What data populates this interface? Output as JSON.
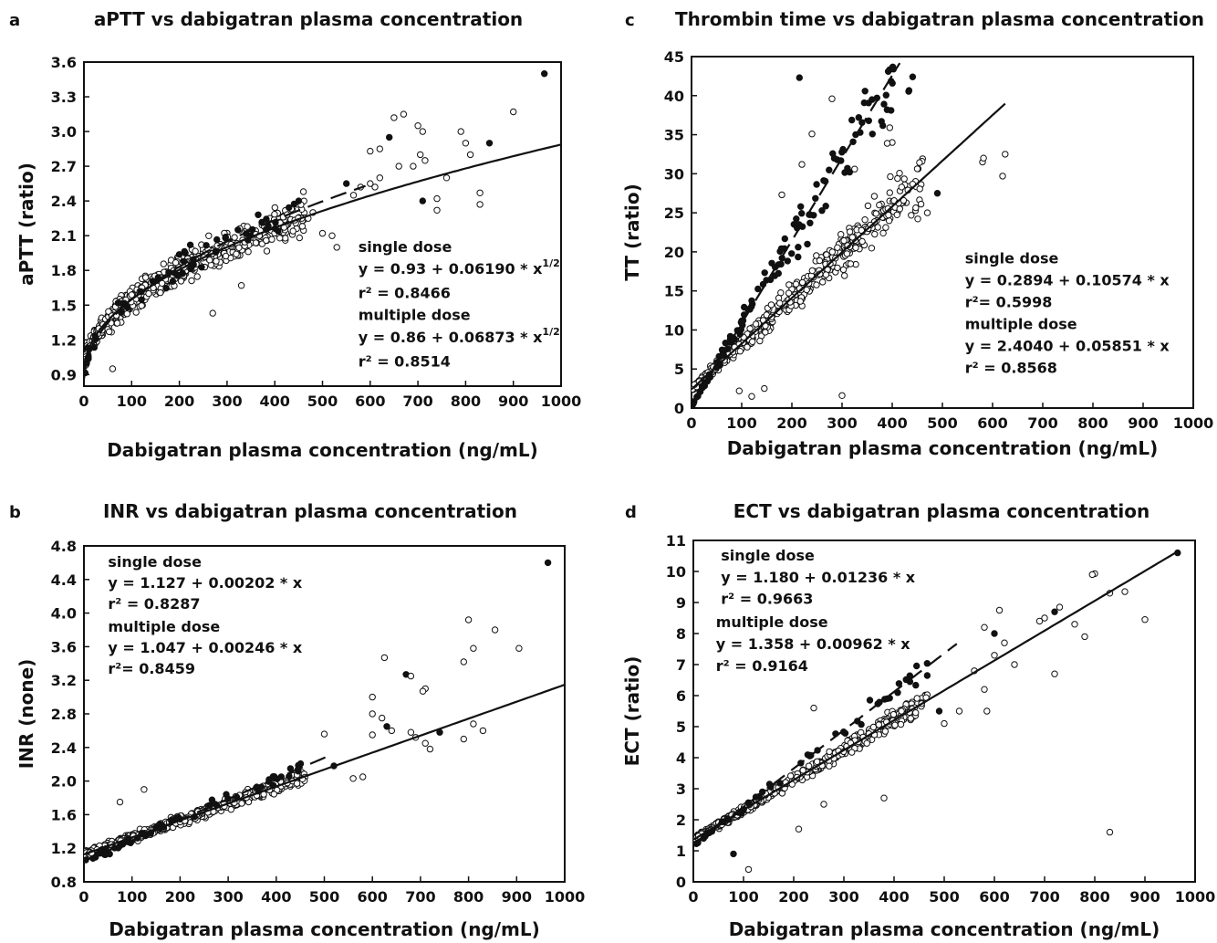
{
  "chart_data": [
    {
      "id": "a",
      "type": "scatter",
      "letter": "a",
      "title": "aPTT vs dabigatran plasma concentration",
      "xlabel": "Dabigatran plasma concentration (ng/mL)",
      "ylabel": "aPTT (ratio)",
      "xlim": [
        0,
        1000
      ],
      "ylim": [
        0.8,
        3.6
      ],
      "xticks": [
        "0",
        "100",
        "200",
        "300",
        "400",
        "500",
        "600",
        "700",
        "800",
        "900",
        "1000"
      ],
      "yticks": [
        "0.9",
        "1.2",
        "1.5",
        "1.8",
        "2.1",
        "2.4",
        "2.7",
        "3.0",
        "3.3",
        "3.6"
      ],
      "annotations": [
        {
          "text": "single dose",
          "x": 575,
          "y": 1.96
        },
        {
          "text": "y = 0.93 + 0.06190 * x",
          "sup": "1/2",
          "x": 575,
          "y": 1.77
        },
        {
          "text": "r² = 0.8466",
          "x": 575,
          "y": 1.56
        },
        {
          "text": "multiple dose",
          "x": 575,
          "y": 1.37
        },
        {
          "text": "y = 0.86 + 0.06873 * x",
          "sup": "1/2",
          "x": 575,
          "y": 1.18
        },
        {
          "text": "r² = 0.8514",
          "x": 575,
          "y": 0.97
        }
      ],
      "series": [
        {
          "model": "sqrt",
          "a": 0.93,
          "b": 0.0619,
          "xmax": 1000,
          "dashed": false
        },
        {
          "model": "sqrt",
          "a": 0.86,
          "b": 0.06873,
          "xmax": 590,
          "dashed": true
        }
      ],
      "outliers": [
        [
          965,
          3.5
        ],
        [
          900,
          3.17
        ],
        [
          670,
          3.15
        ],
        [
          650,
          3.12
        ],
        [
          700,
          3.05
        ],
        [
          710,
          3.0
        ],
        [
          790,
          3.0
        ],
        [
          640,
          2.95
        ],
        [
          600,
          2.83
        ],
        [
          620,
          2.85
        ],
        [
          705,
          2.8
        ],
        [
          715,
          2.75
        ],
        [
          800,
          2.9
        ],
        [
          810,
          2.8
        ],
        [
          850,
          2.9
        ],
        [
          660,
          2.7
        ],
        [
          690,
          2.7
        ],
        [
          620,
          2.6
        ],
        [
          600,
          2.55
        ],
        [
          580,
          2.52
        ],
        [
          565,
          2.45
        ],
        [
          710,
          2.4
        ],
        [
          740,
          2.42
        ],
        [
          740,
          2.32
        ],
        [
          760,
          2.6
        ],
        [
          830,
          2.47
        ],
        [
          830,
          2.37
        ],
        [
          610,
          2.52
        ],
        [
          550,
          2.55
        ],
        [
          500,
          2.12
        ],
        [
          520,
          2.1
        ],
        [
          530,
          2.0
        ],
        [
          480,
          2.3
        ],
        [
          470,
          2.25
        ],
        [
          460,
          2.48
        ],
        [
          450,
          2.4
        ],
        [
          60,
          0.95
        ],
        [
          270,
          1.43
        ],
        [
          330,
          1.67
        ]
      ],
      "filled_count": 55,
      "open_count": 520,
      "cloud_xmax": 460,
      "cloud_noise": 0.13
    },
    {
      "id": "c",
      "type": "scatter",
      "letter": "c",
      "title": "Thrombin time vs dabigatran plasma concentration",
      "xlabel": "Dabigatran plasma concentration (ng/mL)",
      "ylabel": "TT (ratio)",
      "xlim": [
        0,
        1000
      ],
      "ylim": [
        0,
        45
      ],
      "xticks": [
        "0",
        "100",
        "200",
        "300",
        "400",
        "500",
        "600",
        "700",
        "800",
        "900",
        "1000"
      ],
      "yticks": [
        "0",
        "5",
        "10",
        "15",
        "20",
        "25",
        "30",
        "35",
        "40",
        "45"
      ],
      "annotations": [
        {
          "text": "single dose",
          "x": 545,
          "y": 18.5
        },
        {
          "text": "y = 0.2894 + 0.10574 * x",
          "x": 545,
          "y": 15.7
        },
        {
          "text": "r²= 0.5998",
          "x": 545,
          "y": 12.9
        },
        {
          "text": "multiple dose",
          "x": 545,
          "y": 10.1
        },
        {
          "text": "y = 2.4040 + 0.05851 * x",
          "x": 545,
          "y": 7.3
        },
        {
          "text": "r² = 0.8568",
          "x": 545,
          "y": 4.5
        }
      ],
      "series": [
        {
          "model": "linear",
          "a": 0.2894,
          "b": 0.10574,
          "xmax": 415,
          "dashed": true
        },
        {
          "model": "linear",
          "a": 2.404,
          "b": 0.05851,
          "xmax": 625,
          "dashed": false
        }
      ],
      "outliers": [
        [
          215,
          42.3
        ],
        [
          280,
          39.6
        ],
        [
          395,
          35.9
        ],
        [
          240,
          35.1
        ],
        [
          400,
          34.0
        ],
        [
          390,
          33.9
        ],
        [
          325,
          30.6
        ],
        [
          315,
          30.2
        ],
        [
          220,
          31.2
        ],
        [
          180,
          27.3
        ],
        [
          580,
          31.5
        ],
        [
          582,
          32.0
        ],
        [
          625,
          32.5
        ],
        [
          620,
          29.7
        ],
        [
          490,
          27.5
        ],
        [
          470,
          25.0
        ],
        [
          300,
          1.6
        ],
        [
          145,
          2.5
        ],
        [
          120,
          1.5
        ],
        [
          95,
          2.2
        ]
      ],
      "filled_count": 140,
      "open_count": 420,
      "cloud_xmax": 460,
      "cloud_noise": 0.22
    },
    {
      "id": "b",
      "type": "scatter",
      "letter": "b",
      "title": "INR vs dabigatran plasma concentration",
      "xlabel": "Dabigatran plasma concentration (ng/mL)",
      "ylabel": "INR (none)",
      "xlim": [
        0,
        1000
      ],
      "ylim": [
        0.8,
        4.8
      ],
      "xticks": [
        "0",
        "100",
        "200",
        "300",
        "400",
        "500",
        "600",
        "700",
        "800",
        "900",
        "1000"
      ],
      "yticks": [
        "0.8",
        "1.2",
        "1.6",
        "2.0",
        "2.4",
        "2.8",
        "3.2",
        "3.6",
        "4.0",
        "4.4",
        "4.8"
      ],
      "annotations": [
        {
          "text": "single dose",
          "x": 50,
          "y": 4.55
        },
        {
          "text": "y = 1.127 + 0.00202 * x",
          "x": 50,
          "y": 4.3
        },
        {
          "text": "r² = 0.8287",
          "x": 50,
          "y": 4.05
        },
        {
          "text": "multiple dose",
          "x": 50,
          "y": 3.78
        },
        {
          "text": "y = 1.047 + 0.00246 * x",
          "x": 50,
          "y": 3.53
        },
        {
          "text": "r²= 0.8459",
          "x": 50,
          "y": 3.28
        }
      ],
      "series": [
        {
          "model": "linear",
          "a": 1.127,
          "b": 0.00202,
          "xmax": 1000,
          "dashed": false
        },
        {
          "model": "linear",
          "a": 1.047,
          "b": 0.00246,
          "xmax": 510,
          "dashed": true
        }
      ],
      "outliers": [
        [
          965,
          4.6
        ],
        [
          800,
          3.92
        ],
        [
          855,
          3.8
        ],
        [
          810,
          3.58
        ],
        [
          905,
          3.58
        ],
        [
          790,
          3.42
        ],
        [
          625,
          3.47
        ],
        [
          670,
          3.27
        ],
        [
          680,
          3.25
        ],
        [
          710,
          3.1
        ],
        [
          705,
          3.07
        ],
        [
          600,
          3.0
        ],
        [
          620,
          2.75
        ],
        [
          600,
          2.8
        ],
        [
          630,
          2.65
        ],
        [
          640,
          2.6
        ],
        [
          600,
          2.55
        ],
        [
          680,
          2.58
        ],
        [
          690,
          2.52
        ],
        [
          710,
          2.45
        ],
        [
          720,
          2.38
        ],
        [
          740,
          2.58
        ],
        [
          790,
          2.5
        ],
        [
          810,
          2.68
        ],
        [
          830,
          2.6
        ],
        [
          500,
          2.56
        ],
        [
          580,
          2.05
        ],
        [
          560,
          2.03
        ],
        [
          520,
          2.18
        ],
        [
          75,
          1.75
        ],
        [
          125,
          1.9
        ]
      ],
      "filled_count": 60,
      "open_count": 560,
      "cloud_xmax": 460,
      "cloud_noise": 0.07
    },
    {
      "id": "d",
      "type": "scatter",
      "letter": "d",
      "title": "ECT vs dabigatran plasma concentration",
      "xlabel": "Dabigatran plasma concentration (ng/mL)",
      "ylabel": "ECT (ratio)",
      "xlim": [
        0,
        1000
      ],
      "ylim": [
        0,
        11
      ],
      "xticks": [
        "0",
        "100",
        "200",
        "300",
        "400",
        "500",
        "600",
        "700",
        "800",
        "900",
        "1000"
      ],
      "yticks": [
        "0",
        "1",
        "2",
        "3",
        "4",
        "5",
        "6",
        "7",
        "8",
        "9",
        "10",
        "11"
      ],
      "annotations": [
        {
          "text": "single dose",
          "x": 55,
          "y": 10.35
        },
        {
          "text": "y = 1.180 + 0.01236 * x",
          "x": 55,
          "y": 9.65
        },
        {
          "text": "r² = 0.9663",
          "x": 55,
          "y": 8.95
        },
        {
          "text": "multiple dose",
          "x": 45,
          "y": 8.2
        },
        {
          "text": "y = 1.358 + 0.00962 * x",
          "x": 45,
          "y": 7.5
        },
        {
          "text": "r² = 0.9164",
          "x": 45,
          "y": 6.8
        }
      ],
      "series": [
        {
          "model": "linear",
          "a": 1.18,
          "b": 0.01236,
          "xmax": 525,
          "dashed": true
        },
        {
          "model": "linear",
          "a": 1.358,
          "b": 0.00962,
          "xmax": 965,
          "dashed": false
        }
      ],
      "outliers": [
        [
          965,
          10.6
        ],
        [
          800,
          9.93
        ],
        [
          795,
          9.9
        ],
        [
          860,
          9.35
        ],
        [
          900,
          8.45
        ],
        [
          830,
          9.3
        ],
        [
          730,
          8.85
        ],
        [
          720,
          8.7
        ],
        [
          700,
          8.5
        ],
        [
          690,
          8.4
        ],
        [
          760,
          8.3
        ],
        [
          780,
          7.9
        ],
        [
          610,
          8.75
        ],
        [
          580,
          8.2
        ],
        [
          600,
          8.0
        ],
        [
          620,
          7.7
        ],
        [
          600,
          7.3
        ],
        [
          640,
          7.0
        ],
        [
          560,
          6.8
        ],
        [
          580,
          6.2
        ],
        [
          530,
          5.5
        ],
        [
          490,
          5.5
        ],
        [
          500,
          5.1
        ],
        [
          585,
          5.5
        ],
        [
          830,
          1.6
        ],
        [
          380,
          2.7
        ],
        [
          210,
          1.7
        ],
        [
          110,
          0.4
        ],
        [
          80,
          0.9
        ],
        [
          240,
          5.6
        ],
        [
          260,
          2.5
        ],
        [
          720,
          6.7
        ]
      ],
      "filled_count": 45,
      "open_count": 520,
      "cloud_xmax": 470,
      "cloud_noise": 0.1
    }
  ]
}
